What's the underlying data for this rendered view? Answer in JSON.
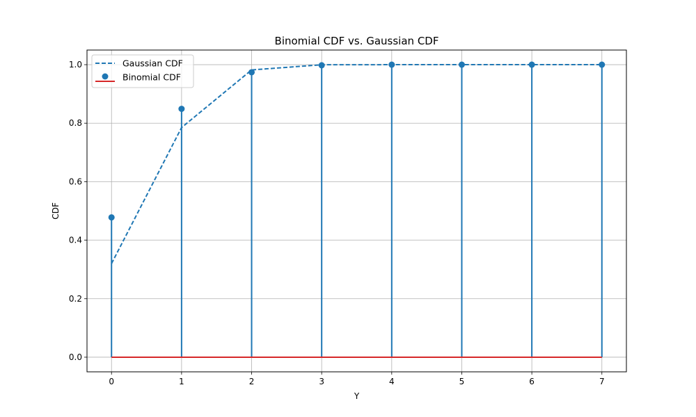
{
  "chart_data": {
    "type": "line",
    "title": "Binomial CDF vs. Gaussian CDF",
    "xlabel": "Y",
    "ylabel": "CDF",
    "xlim": [
      -0.35,
      7.35
    ],
    "ylim": [
      -0.05,
      1.05
    ],
    "xticks": [
      0,
      1,
      2,
      3,
      4,
      5,
      6,
      7
    ],
    "yticks": [
      0.0,
      0.2,
      0.4,
      0.6,
      0.8,
      1.0
    ],
    "ytick_labels": [
      "0.0",
      "0.2",
      "0.4",
      "0.6",
      "0.8",
      "1.0"
    ],
    "grid": true,
    "legend_position": "top-left",
    "series": [
      {
        "name": "Gaussian CDF",
        "kind": "dashed-line",
        "color": "#1f77b4",
        "x": [
          0,
          1,
          2,
          3,
          4,
          5,
          6,
          7
        ],
        "y": [
          0.32,
          0.785,
          0.982,
          0.9997,
          1.0,
          1.0,
          1.0,
          1.0
        ]
      },
      {
        "name": "Binomial CDF",
        "kind": "stem",
        "color": "#1f77b4",
        "baseline_color": "#d62728",
        "baseline": 0.0,
        "x": [
          0,
          1,
          2,
          3,
          4,
          5,
          6,
          7
        ],
        "y": [
          0.478,
          0.849,
          0.974,
          0.998,
          1.0,
          1.0,
          1.0,
          1.0
        ]
      }
    ]
  }
}
